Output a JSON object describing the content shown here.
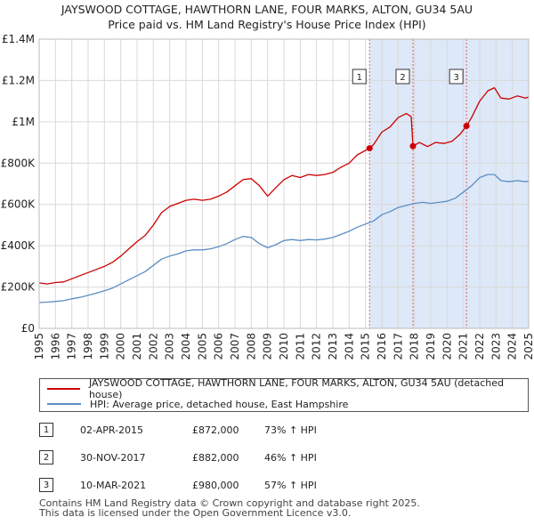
{
  "title_line1": "JAYSWOOD COTTAGE, HAWTHORN LANE, FOUR MARKS, ALTON, GU34 5AU",
  "title_line2": "Price paid vs. HM Land Registry's House Price Index (HPI)",
  "colors": {
    "property": "#cc0000",
    "hpi": "#5b8ec4",
    "shade": "#dde8f8",
    "grid": "#d9d9d9",
    "marker_line": "#e06060"
  },
  "chart_data": {
    "type": "line",
    "title": "Price paid vs. HM Land Registry's House Price Index (HPI)",
    "xlabel": "",
    "ylabel": "",
    "xlim": [
      1995,
      2025
    ],
    "ylim": [
      0,
      1400000
    ],
    "y_ticks": [
      0,
      200000,
      400000,
      600000,
      800000,
      1000000,
      1200000,
      1400000
    ],
    "y_tick_labels": [
      "£0",
      "£200K",
      "£400K",
      "£600K",
      "£800K",
      "£1M",
      "£1.2M",
      "£1.4M"
    ],
    "x_ticks": [
      "1995",
      "1996",
      "1997",
      "1998",
      "1999",
      "2000",
      "2001",
      "2002",
      "2003",
      "2004",
      "2005",
      "2006",
      "2007",
      "2008",
      "2009",
      "2010",
      "2011",
      "2012",
      "2013",
      "2014",
      "2015",
      "2016",
      "2017",
      "2018",
      "2019",
      "2020",
      "2021",
      "2022",
      "2023",
      "2024",
      "2025"
    ],
    "series": [
      {
        "name": "JAYSWOOD COTTAGE, HAWTHORN LANE, FOUR MARKS, ALTON, GU34 5AU (detached house)",
        "color": "#cc0000",
        "points": [
          [
            1995.0,
            220000
          ],
          [
            1995.5,
            215000
          ],
          [
            1996.0,
            222000
          ],
          [
            1996.5,
            225000
          ],
          [
            1997.0,
            240000
          ],
          [
            1997.5,
            255000
          ],
          [
            1998.0,
            270000
          ],
          [
            1998.5,
            285000
          ],
          [
            1999.0,
            300000
          ],
          [
            1999.5,
            320000
          ],
          [
            2000.0,
            350000
          ],
          [
            2000.5,
            385000
          ],
          [
            2001.0,
            420000
          ],
          [
            2001.5,
            450000
          ],
          [
            2002.0,
            500000
          ],
          [
            2002.5,
            560000
          ],
          [
            2003.0,
            590000
          ],
          [
            2003.5,
            605000
          ],
          [
            2004.0,
            620000
          ],
          [
            2004.5,
            625000
          ],
          [
            2005.0,
            620000
          ],
          [
            2005.5,
            625000
          ],
          [
            2006.0,
            640000
          ],
          [
            2006.5,
            660000
          ],
          [
            2007.0,
            690000
          ],
          [
            2007.5,
            720000
          ],
          [
            2008.0,
            725000
          ],
          [
            2008.5,
            690000
          ],
          [
            2009.0,
            640000
          ],
          [
            2009.5,
            680000
          ],
          [
            2010.0,
            720000
          ],
          [
            2010.5,
            740000
          ],
          [
            2011.0,
            730000
          ],
          [
            2011.5,
            745000
          ],
          [
            2012.0,
            740000
          ],
          [
            2012.5,
            745000
          ],
          [
            2013.0,
            755000
          ],
          [
            2013.5,
            780000
          ],
          [
            2014.0,
            800000
          ],
          [
            2014.5,
            840000
          ],
          [
            2015.25,
            872000
          ],
          [
            2015.5,
            890000
          ],
          [
            2016.0,
            950000
          ],
          [
            2016.5,
            975000
          ],
          [
            2017.0,
            1020000
          ],
          [
            2017.5,
            1040000
          ],
          [
            2017.8,
            1025000
          ],
          [
            2017.91,
            882000
          ],
          [
            2018.3,
            900000
          ],
          [
            2018.8,
            880000
          ],
          [
            2019.3,
            900000
          ],
          [
            2019.8,
            895000
          ],
          [
            2020.3,
            905000
          ],
          [
            2020.8,
            940000
          ],
          [
            2021.19,
            980000
          ],
          [
            2021.5,
            1020000
          ],
          [
            2022.0,
            1100000
          ],
          [
            2022.5,
            1150000
          ],
          [
            2022.9,
            1165000
          ],
          [
            2023.3,
            1115000
          ],
          [
            2023.8,
            1110000
          ],
          [
            2024.3,
            1125000
          ],
          [
            2024.8,
            1115000
          ],
          [
            2025.0,
            1120000
          ]
        ]
      },
      {
        "name": "HPI: Average price, detached house, East Hampshire",
        "color": "#5b8ec4",
        "points": [
          [
            1995.0,
            125000
          ],
          [
            1995.5,
            127000
          ],
          [
            1996.0,
            130000
          ],
          [
            1996.5,
            134000
          ],
          [
            1997.0,
            143000
          ],
          [
            1997.5,
            150000
          ],
          [
            1998.0,
            160000
          ],
          [
            1998.5,
            170000
          ],
          [
            1999.0,
            182000
          ],
          [
            1999.5,
            195000
          ],
          [
            2000.0,
            215000
          ],
          [
            2000.5,
            235000
          ],
          [
            2001.0,
            255000
          ],
          [
            2001.5,
            275000
          ],
          [
            2002.0,
            305000
          ],
          [
            2002.5,
            335000
          ],
          [
            2003.0,
            350000
          ],
          [
            2003.5,
            360000
          ],
          [
            2004.0,
            375000
          ],
          [
            2004.5,
            380000
          ],
          [
            2005.0,
            380000
          ],
          [
            2005.5,
            385000
          ],
          [
            2006.0,
            395000
          ],
          [
            2006.5,
            410000
          ],
          [
            2007.0,
            430000
          ],
          [
            2007.5,
            445000
          ],
          [
            2008.0,
            440000
          ],
          [
            2008.5,
            410000
          ],
          [
            2009.0,
            390000
          ],
          [
            2009.5,
            405000
          ],
          [
            2010.0,
            425000
          ],
          [
            2010.5,
            430000
          ],
          [
            2011.0,
            425000
          ],
          [
            2011.5,
            430000
          ],
          [
            2012.0,
            428000
          ],
          [
            2012.5,
            432000
          ],
          [
            2013.0,
            440000
          ],
          [
            2013.5,
            455000
          ],
          [
            2014.0,
            470000
          ],
          [
            2014.5,
            490000
          ],
          [
            2015.0,
            505000
          ],
          [
            2015.5,
            520000
          ],
          [
            2016.0,
            550000
          ],
          [
            2016.5,
            565000
          ],
          [
            2017.0,
            585000
          ],
          [
            2017.5,
            595000
          ],
          [
            2018.0,
            605000
          ],
          [
            2018.5,
            610000
          ],
          [
            2019.0,
            605000
          ],
          [
            2019.5,
            610000
          ],
          [
            2020.0,
            615000
          ],
          [
            2020.5,
            630000
          ],
          [
            2021.0,
            660000
          ],
          [
            2021.5,
            690000
          ],
          [
            2022.0,
            730000
          ],
          [
            2022.5,
            745000
          ],
          [
            2022.9,
            745000
          ],
          [
            2023.3,
            715000
          ],
          [
            2023.8,
            710000
          ],
          [
            2024.3,
            715000
          ],
          [
            2024.8,
            710000
          ],
          [
            2025.0,
            712000
          ]
        ]
      }
    ],
    "sales": [
      {
        "label": "1",
        "date": "02-APR-2015",
        "x": 2015.25,
        "price": 872000,
        "price_label": "£872,000",
        "hpi": "73% ↑ HPI"
      },
      {
        "label": "2",
        "date": "30-NOV-2017",
        "x": 2017.91,
        "price": 882000,
        "price_label": "£882,000",
        "hpi": "46% ↑ HPI"
      },
      {
        "label": "3",
        "date": "10-MAR-2021",
        "x": 2021.19,
        "price": 980000,
        "price_label": "£980,000",
        "hpi": "57% ↑ HPI"
      }
    ]
  },
  "legend": {
    "property": "JAYSWOOD COTTAGE, HAWTHORN LANE, FOUR MARKS, ALTON, GU34 5AU (detached house)",
    "hpi": "HPI: Average price, detached house, East Hampshire"
  },
  "footer_line1": "Contains HM Land Registry data © Crown copyright and database right 2025.",
  "footer_line2": "This data is licensed under the Open Government Licence v3.0."
}
